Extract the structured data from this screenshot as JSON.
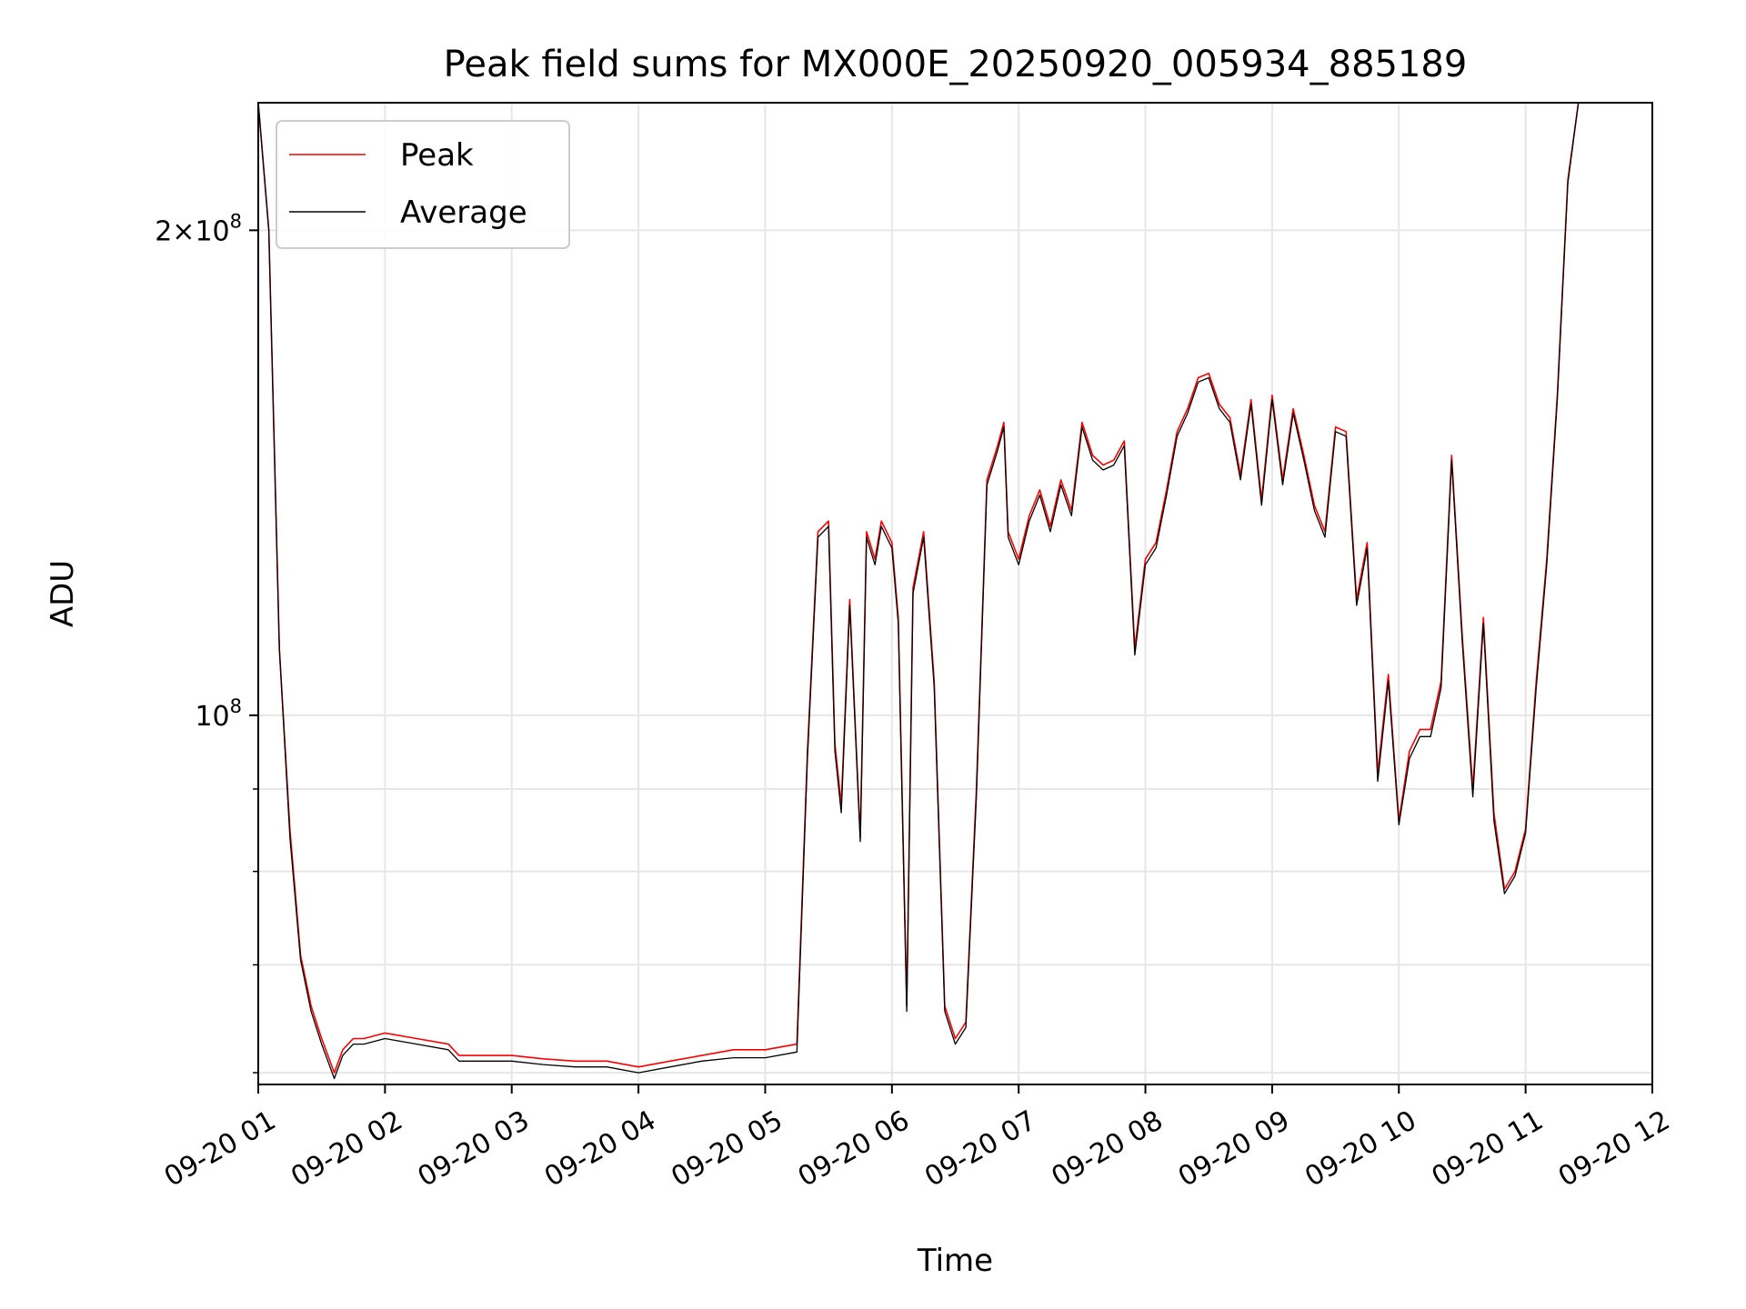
{
  "chart_data": {
    "type": "line",
    "title": "Peak field sums for MX000E_20250920_005934_885189",
    "xlabel": "Time",
    "ylabel": "ADU",
    "y_scale": "log",
    "ylim": [
      59000000,
      240000000
    ],
    "xlim": [
      "2025-09-20 01:00",
      "2025-09-20 12:00"
    ],
    "x_ticks": [
      "09-20 01",
      "09-20 02",
      "09-20 03",
      "09-20 04",
      "09-20 05",
      "09-20 06",
      "09-20 07",
      "09-20 08",
      "09-20 09",
      "09-20 10",
      "09-20 11",
      "09-20 12"
    ],
    "y_ticks_major": [
      {
        "value": 100000000,
        "base": "10",
        "exp": "8",
        "mantissa": ""
      },
      {
        "value": 200000000,
        "base": "10",
        "exp": "8",
        "mantissa": "2×"
      }
    ],
    "y_ticks_minor": [
      60000000,
      70000000,
      80000000,
      90000000
    ],
    "grid": true,
    "legend": "upper-left",
    "series": [
      {
        "name": "Peak",
        "color": "#ff0000",
        "x": [
          "2025-09-20 01:00",
          "2025-09-20 01:05",
          "2025-09-20 01:10",
          "2025-09-20 01:15",
          "2025-09-20 01:20",
          "2025-09-20 01:25",
          "2025-09-20 01:30",
          "2025-09-20 01:33",
          "2025-09-20 01:36",
          "2025-09-20 01:40",
          "2025-09-20 01:45",
          "2025-09-20 01:50",
          "2025-09-20 02:00",
          "2025-09-20 02:15",
          "2025-09-20 02:30",
          "2025-09-20 02:35",
          "2025-09-20 02:45",
          "2025-09-20 03:00",
          "2025-09-20 03:15",
          "2025-09-20 03:30",
          "2025-09-20 03:45",
          "2025-09-20 04:00",
          "2025-09-20 04:15",
          "2025-09-20 04:30",
          "2025-09-20 04:45",
          "2025-09-20 04:55",
          "2025-09-20 05:00",
          "2025-09-20 05:15",
          "2025-09-20 05:20",
          "2025-09-20 05:25",
          "2025-09-20 05:30",
          "2025-09-20 05:33",
          "2025-09-20 05:36",
          "2025-09-20 05:40",
          "2025-09-20 05:45",
          "2025-09-20 05:48",
          "2025-09-20 05:52",
          "2025-09-20 05:55",
          "2025-09-20 06:00",
          "2025-09-20 06:03",
          "2025-09-20 06:07",
          "2025-09-20 06:10",
          "2025-09-20 06:15",
          "2025-09-20 06:20",
          "2025-09-20 06:25",
          "2025-09-20 06:30",
          "2025-09-20 06:35",
          "2025-09-20 06:40",
          "2025-09-20 06:45",
          "2025-09-20 06:50",
          "2025-09-20 06:53",
          "2025-09-20 06:55",
          "2025-09-20 07:00",
          "2025-09-20 07:05",
          "2025-09-20 07:10",
          "2025-09-20 07:15",
          "2025-09-20 07:20",
          "2025-09-20 07:25",
          "2025-09-20 07:30",
          "2025-09-20 07:35",
          "2025-09-20 07:40",
          "2025-09-20 07:45",
          "2025-09-20 07:50",
          "2025-09-20 07:55",
          "2025-09-20 08:00",
          "2025-09-20 08:05",
          "2025-09-20 08:10",
          "2025-09-20 08:15",
          "2025-09-20 08:20",
          "2025-09-20 08:25",
          "2025-09-20 08:30",
          "2025-09-20 08:35",
          "2025-09-20 08:40",
          "2025-09-20 08:45",
          "2025-09-20 08:50",
          "2025-09-20 08:55",
          "2025-09-20 09:00",
          "2025-09-20 09:05",
          "2025-09-20 09:10",
          "2025-09-20 09:15",
          "2025-09-20 09:20",
          "2025-09-20 09:25",
          "2025-09-20 09:30",
          "2025-09-20 09:35",
          "2025-09-20 09:40",
          "2025-09-20 09:45",
          "2025-09-20 09:50",
          "2025-09-20 09:55",
          "2025-09-20 10:00",
          "2025-09-20 10:05",
          "2025-09-20 10:10",
          "2025-09-20 10:15",
          "2025-09-20 10:20",
          "2025-09-20 10:25",
          "2025-09-20 10:30",
          "2025-09-20 10:35",
          "2025-09-20 10:40",
          "2025-09-20 10:45",
          "2025-09-20 10:50",
          "2025-09-20 10:55",
          "2025-09-20 11:00",
          "2025-09-20 11:05",
          "2025-09-20 11:10",
          "2025-09-20 11:15",
          "2025-09-20 11:20",
          "2025-09-20 11:25",
          "2025-09-20 11:30",
          "2025-09-20 11:35",
          "2025-09-20 11:40",
          "2025-09-20 11:45",
          "2025-09-20 11:50",
          "2025-09-20 11:55",
          "2025-09-20 12:00"
        ],
        "y": [
          240000000,
          200000000,
          110000000,
          85000000,
          71000000,
          66000000,
          63000000,
          61500000,
          60000000,
          62000000,
          63000000,
          63000000,
          63500000,
          63000000,
          62500000,
          61500000,
          61500000,
          61500000,
          61200000,
          61000000,
          61000000,
          60500000,
          61000000,
          61500000,
          62000000,
          62000000,
          62000000,
          62500000,
          95000000,
          130000000,
          132000000,
          96000000,
          88000000,
          118000000,
          84000000,
          130000000,
          125000000,
          132000000,
          128000000,
          115000000,
          66000000,
          120000000,
          130000000,
          105000000,
          66000000,
          63000000,
          64500000,
          90000000,
          140000000,
          147000000,
          152000000,
          130000000,
          125000000,
          133000000,
          138000000,
          131000000,
          140000000,
          134000000,
          152000000,
          145000000,
          143000000,
          144000000,
          148000000,
          110000000,
          125000000,
          128000000,
          138000000,
          150000000,
          155000000,
          162000000,
          163000000,
          156000000,
          153000000,
          141000000,
          157000000,
          136000000,
          158000000,
          140000000,
          155000000,
          145000000,
          135000000,
          130000000,
          151000000,
          150000000,
          118000000,
          128000000,
          92000000,
          106000000,
          86000000,
          95000000,
          98000000,
          98000000,
          105000000,
          145000000,
          112000000,
          90000000,
          115000000,
          87000000,
          78000000,
          80000000,
          85000000,
          105000000,
          125000000,
          158000000,
          215000000,
          240000000,
          240000000,
          240000000,
          240000000,
          240000000,
          240000000,
          240000000,
          240000000
        ]
      },
      {
        "name": "Average",
        "color": "#000000",
        "x": [
          "2025-09-20 01:00",
          "2025-09-20 01:05",
          "2025-09-20 01:10",
          "2025-09-20 01:15",
          "2025-09-20 01:20",
          "2025-09-20 01:25",
          "2025-09-20 01:30",
          "2025-09-20 01:33",
          "2025-09-20 01:36",
          "2025-09-20 01:40",
          "2025-09-20 01:45",
          "2025-09-20 01:50",
          "2025-09-20 02:00",
          "2025-09-20 02:15",
          "2025-09-20 02:30",
          "2025-09-20 02:35",
          "2025-09-20 02:45",
          "2025-09-20 03:00",
          "2025-09-20 03:15",
          "2025-09-20 03:30",
          "2025-09-20 03:45",
          "2025-09-20 04:00",
          "2025-09-20 04:15",
          "2025-09-20 04:30",
          "2025-09-20 04:45",
          "2025-09-20 04:55",
          "2025-09-20 05:00",
          "2025-09-20 05:15",
          "2025-09-20 05:20",
          "2025-09-20 05:25",
          "2025-09-20 05:30",
          "2025-09-20 05:33",
          "2025-09-20 05:36",
          "2025-09-20 05:40",
          "2025-09-20 05:45",
          "2025-09-20 05:48",
          "2025-09-20 05:52",
          "2025-09-20 05:55",
          "2025-09-20 06:00",
          "2025-09-20 06:03",
          "2025-09-20 06:07",
          "2025-09-20 06:10",
          "2025-09-20 06:15",
          "2025-09-20 06:20",
          "2025-09-20 06:25",
          "2025-09-20 06:30",
          "2025-09-20 06:35",
          "2025-09-20 06:40",
          "2025-09-20 06:45",
          "2025-09-20 06:50",
          "2025-09-20 06:53",
          "2025-09-20 06:55",
          "2025-09-20 07:00",
          "2025-09-20 07:05",
          "2025-09-20 07:10",
          "2025-09-20 07:15",
          "2025-09-20 07:20",
          "2025-09-20 07:25",
          "2025-09-20 07:30",
          "2025-09-20 07:35",
          "2025-09-20 07:40",
          "2025-09-20 07:45",
          "2025-09-20 07:50",
          "2025-09-20 07:55",
          "2025-09-20 08:00",
          "2025-09-20 08:05",
          "2025-09-20 08:10",
          "2025-09-20 08:15",
          "2025-09-20 08:20",
          "2025-09-20 08:25",
          "2025-09-20 08:30",
          "2025-09-20 08:35",
          "2025-09-20 08:40",
          "2025-09-20 08:45",
          "2025-09-20 08:50",
          "2025-09-20 08:55",
          "2025-09-20 09:00",
          "2025-09-20 09:05",
          "2025-09-20 09:10",
          "2025-09-20 09:15",
          "2025-09-20 09:20",
          "2025-09-20 09:25",
          "2025-09-20 09:30",
          "2025-09-20 09:35",
          "2025-09-20 09:40",
          "2025-09-20 09:45",
          "2025-09-20 09:50",
          "2025-09-20 09:55",
          "2025-09-20 10:00",
          "2025-09-20 10:05",
          "2025-09-20 10:10",
          "2025-09-20 10:15",
          "2025-09-20 10:20",
          "2025-09-20 10:25",
          "2025-09-20 10:30",
          "2025-09-20 10:35",
          "2025-09-20 10:40",
          "2025-09-20 10:45",
          "2025-09-20 10:50",
          "2025-09-20 10:55",
          "2025-09-20 11:00",
          "2025-09-20 11:05",
          "2025-09-20 11:10",
          "2025-09-20 11:15",
          "2025-09-20 11:20",
          "2025-09-20 11:25",
          "2025-09-20 11:30",
          "2025-09-20 11:35",
          "2025-09-20 11:40",
          "2025-09-20 11:45",
          "2025-09-20 11:50",
          "2025-09-20 11:55",
          "2025-09-20 12:00"
        ],
        "y": [
          240000000,
          200000000,
          110000000,
          84000000,
          70500000,
          65500000,
          62500000,
          61000000,
          59500000,
          61500000,
          62500000,
          62500000,
          63000000,
          62500000,
          62000000,
          61000000,
          61000000,
          61000000,
          60700000,
          60500000,
          60500000,
          60000000,
          60500000,
          61000000,
          61300000,
          61300000,
          61300000,
          61800000,
          94000000,
          129000000,
          131000000,
          95000000,
          87000000,
          117000000,
          83500000,
          129000000,
          124000000,
          131000000,
          127000000,
          114000000,
          65500000,
          119000000,
          129000000,
          104000000,
          65500000,
          62500000,
          64000000,
          89000000,
          139000000,
          146000000,
          151000000,
          129000000,
          124000000,
          132000000,
          137000000,
          130000000,
          139000000,
          133000000,
          151000000,
          144000000,
          142000000,
          143000000,
          147000000,
          109000000,
          124000000,
          127000000,
          137000000,
          149000000,
          154000000,
          161000000,
          162000000,
          155000000,
          152000000,
          140000000,
          156000000,
          135000000,
          157000000,
          139000000,
          154000000,
          144000000,
          134000000,
          129000000,
          150000000,
          149000000,
          117000000,
          127000000,
          91000000,
          105000000,
          85500000,
          94000000,
          97000000,
          97000000,
          104000000,
          144000000,
          111000000,
          89000000,
          114000000,
          86000000,
          77500000,
          79500000,
          84500000,
          104000000,
          124000000,
          157000000,
          214000000,
          240000000,
          240000000,
          240000000,
          240000000,
          240000000,
          240000000,
          240000000,
          240000000
        ]
      }
    ]
  }
}
